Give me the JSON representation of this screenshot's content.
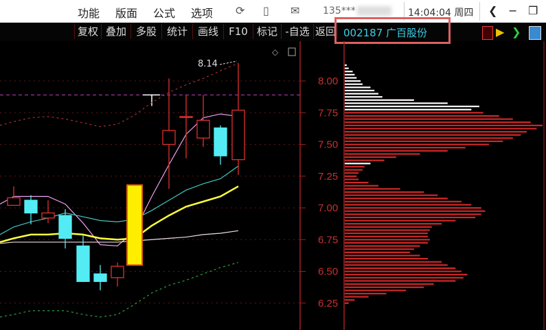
{
  "menu": [
    "功能",
    "版面",
    "公式",
    "选项"
  ],
  "phone": "135***",
  "clock": "14:04:04 周四",
  "toolbar": [
    "复权",
    "叠加",
    "多股",
    "统计",
    "画线",
    "F10",
    "标记",
    "-自选",
    "返回"
  ],
  "stock": "002187 广百股份",
  "colors": {
    "up": "#e03030",
    "down": "#54ecf4",
    "limit": "#ffee00",
    "axis": "#c83030"
  },
  "chart": {
    "price_ticks": [
      "8.00",
      "7.75",
      "7.50",
      "7.25",
      "7.00",
      "6.75",
      "6.50",
      "6.25"
    ],
    "high_label": "8.14",
    "candles": [
      {
        "o": 7.02,
        "c": 7.08,
        "h": 7.17,
        "l": 7.02
      },
      {
        "o": 7.06,
        "c": 6.96,
        "h": 7.1,
        "l": 6.87
      },
      {
        "o": 6.92,
        "c": 6.96,
        "h": 7.06,
        "l": 6.88
      },
      {
        "o": 6.94,
        "c": 6.76,
        "h": 6.99,
        "l": 6.68
      },
      {
        "o": 6.7,
        "c": 6.42,
        "h": 6.79,
        "l": 6.42
      },
      {
        "o": 6.48,
        "c": 6.42,
        "h": 6.55,
        "l": 6.35
      },
      {
        "o": 6.45,
        "c": 6.54,
        "h": 6.57,
        "l": 6.38
      },
      {
        "o": 6.55,
        "c": 7.18,
        "h": 7.18,
        "l": 6.55,
        "limit": true
      },
      null,
      {
        "o": 7.5,
        "c": 7.61,
        "h": 8.02,
        "l": 7.15
      },
      {
        "o": 7.72,
        "c": 7.72,
        "h": 7.89,
        "l": 7.39
      },
      {
        "o": 7.55,
        "c": 7.69,
        "h": 7.89,
        "l": 7.48
      },
      {
        "o": 7.63,
        "c": 7.41,
        "h": 7.65,
        "l": 7.34
      },
      {
        "o": 7.38,
        "c": 7.77,
        "h": 8.14,
        "l": 7.26
      }
    ],
    "lines": [
      {
        "color": "#f0a0f0",
        "values": [
          7.03,
          7.09,
          7.09,
          7.09,
          7.03,
          6.88,
          6.71,
          6.7,
          6.82,
          7.09,
          7.34,
          7.58,
          7.71,
          7.74,
          7.72
        ]
      },
      {
        "color": "#40c8c0",
        "values": [
          6.79,
          6.85,
          6.89,
          6.92,
          6.96,
          6.93,
          6.9,
          6.89,
          6.91,
          6.98,
          7.06,
          7.14,
          7.19,
          7.23,
          7.33
        ]
      },
      {
        "color": "#ffff40",
        "values": [
          6.73,
          6.76,
          6.79,
          6.79,
          6.8,
          6.79,
          6.76,
          6.75,
          6.76,
          6.86,
          6.94,
          7.01,
          7.05,
          7.09,
          7.17
        ]
      },
      {
        "color": "#f0e0e0",
        "values": [
          6.72,
          6.73,
          6.73,
          6.73,
          6.73,
          6.73,
          6.73,
          6.73,
          6.74,
          6.75,
          6.76,
          6.77,
          6.79,
          6.8,
          6.82
        ]
      },
      {
        "color": "#a03030",
        "dash": true,
        "values": [
          7.65,
          7.68,
          7.71,
          7.72,
          7.7,
          7.67,
          7.64,
          7.66,
          7.73,
          7.83,
          7.91,
          7.97,
          8.02,
          8.08,
          8.14
        ]
      },
      {
        "color": "#30a040",
        "dash": true,
        "values": [
          6.14,
          6.16,
          6.19,
          6.19,
          6.19,
          6.16,
          6.14,
          6.16,
          6.24,
          6.33,
          6.39,
          6.43,
          6.48,
          6.53,
          6.57
        ]
      }
    ],
    "ref_line": 7.89,
    "profile": {
      "top": 8.125,
      "step": 0.025,
      "white_above": 7.76,
      "white_extra": [
        7.35
      ],
      "values": [
        1,
        2,
        4,
        5,
        6,
        8,
        9,
        13,
        15,
        17,
        19,
        35,
        52,
        68,
        64,
        70,
        78,
        85,
        94,
        100,
        97,
        92,
        89,
        85,
        80,
        73,
        61,
        52,
        38,
        26,
        20,
        13,
        10,
        9,
        7,
        6,
        7,
        12,
        17,
        28,
        40,
        47,
        52,
        59,
        64,
        69,
        71,
        69,
        66,
        56,
        49,
        44,
        43,
        42,
        42,
        43,
        42,
        38,
        35,
        33,
        38,
        42,
        49,
        52,
        56,
        59,
        62,
        60,
        56,
        45,
        40,
        31,
        21,
        12,
        5,
        2
      ]
    }
  }
}
